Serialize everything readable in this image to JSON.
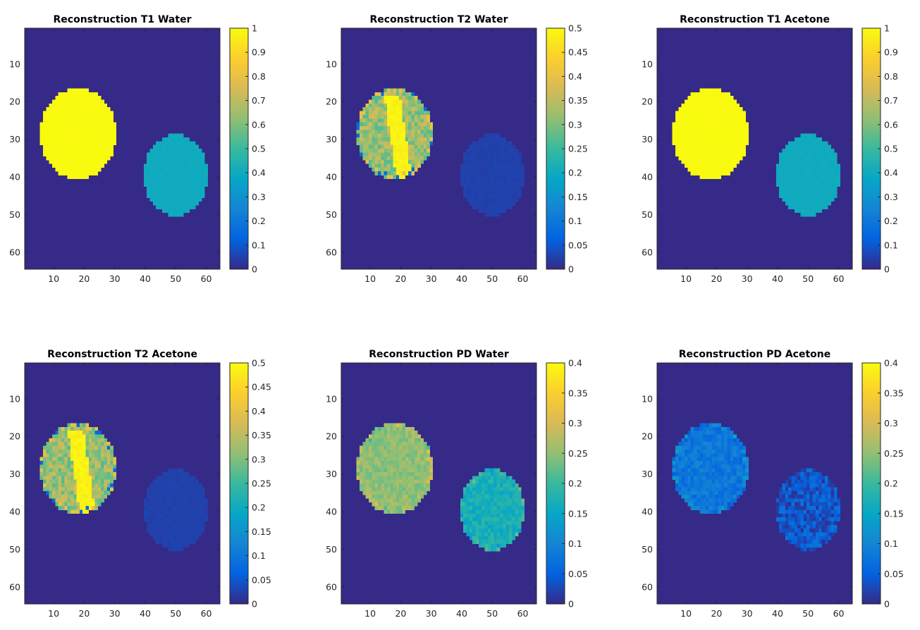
{
  "figure": {
    "colormap": "parula",
    "colormap_stops": [
      "#352a87",
      "#0363e1",
      "#1485d4",
      "#06a7c6",
      "#38b99e",
      "#92bf73",
      "#d9ba56",
      "#fcce2e",
      "#f9fb0e"
    ]
  },
  "chart_data": [
    {
      "type": "heatmap",
      "title": "Reconstruction T1 Water",
      "image_size": [
        64,
        64
      ],
      "xticks": [
        10,
        20,
        30,
        40,
        50,
        60
      ],
      "yticks": [
        10,
        20,
        30,
        40,
        50,
        60
      ],
      "clim": [
        0,
        1
      ],
      "colorbar_ticks": [
        "0",
        "0.1",
        "0.2",
        "0.3",
        "0.4",
        "0.5",
        "0.6",
        "0.7",
        "0.8",
        "0.9",
        "1"
      ],
      "background_value": 0,
      "regions": [
        {
          "shape": "disk",
          "center_x": 18,
          "center_y": 28.5,
          "radius_x": 12.5,
          "radius_y": 12,
          "value": 1.0,
          "texture": "uniform"
        },
        {
          "shape": "disk",
          "center_x": 50,
          "center_y": 39.5,
          "radius_x": 10.5,
          "radius_y": 10.8,
          "value": 0.4,
          "texture": "uniform"
        }
      ]
    },
    {
      "type": "heatmap",
      "title": "Reconstruction T2 Water",
      "image_size": [
        64,
        64
      ],
      "xticks": [
        10,
        20,
        30,
        40,
        50,
        60
      ],
      "yticks": [
        10,
        20,
        30,
        40,
        50,
        60
      ],
      "clim": [
        0,
        0.5
      ],
      "colorbar_ticks": [
        "0",
        "0.05",
        "0.1",
        "0.15",
        "0.2",
        "0.25",
        "0.3",
        "0.35",
        "0.4",
        "0.45",
        "0.5"
      ],
      "background_value": 0,
      "regions": [
        {
          "shape": "disk",
          "center_x": 18,
          "center_y": 28.5,
          "radius_x": 12.5,
          "radius_y": 12,
          "value": 0.32,
          "texture": "mixed_band"
        },
        {
          "shape": "disk",
          "center_x": 50,
          "center_y": 39.5,
          "radius_x": 10.5,
          "radius_y": 10.8,
          "value": 0.025,
          "texture": "uniform"
        }
      ]
    },
    {
      "type": "heatmap",
      "title": "Reconstruction T1 Acetone",
      "image_size": [
        64,
        64
      ],
      "xticks": [
        10,
        20,
        30,
        40,
        50,
        60
      ],
      "yticks": [
        10,
        20,
        30,
        40,
        50,
        60
      ],
      "clim": [
        0,
        1
      ],
      "colorbar_ticks": [
        "0",
        "0.1",
        "0.2",
        "0.3",
        "0.4",
        "0.5",
        "0.6",
        "0.7",
        "0.8",
        "0.9",
        "1"
      ],
      "background_value": 0,
      "regions": [
        {
          "shape": "disk",
          "center_x": 18,
          "center_y": 28.5,
          "radius_x": 12.5,
          "radius_y": 12,
          "value": 1.0,
          "texture": "uniform"
        },
        {
          "shape": "disk",
          "center_x": 50,
          "center_y": 39.5,
          "radius_x": 10.5,
          "radius_y": 10.8,
          "value": 0.4,
          "texture": "uniform"
        }
      ]
    },
    {
      "type": "heatmap",
      "title": "Reconstruction T2 Acetone",
      "image_size": [
        64,
        64
      ],
      "xticks": [
        10,
        20,
        30,
        40,
        50,
        60
      ],
      "yticks": [
        10,
        20,
        30,
        40,
        50,
        60
      ],
      "clim": [
        0,
        0.5
      ],
      "colorbar_ticks": [
        "0",
        "0.05",
        "0.1",
        "0.15",
        "0.2",
        "0.25",
        "0.3",
        "0.35",
        "0.4",
        "0.45",
        "0.5"
      ],
      "background_value": 0,
      "regions": [
        {
          "shape": "disk",
          "center_x": 18,
          "center_y": 28.5,
          "radius_x": 12.5,
          "radius_y": 12,
          "value": 0.32,
          "texture": "mixed_band"
        },
        {
          "shape": "disk",
          "center_x": 50,
          "center_y": 39.5,
          "radius_x": 10.5,
          "radius_y": 10.8,
          "value": 0.025,
          "texture": "uniform"
        }
      ]
    },
    {
      "type": "heatmap",
      "title": "Reconstruction PD Water",
      "image_size": [
        64,
        64
      ],
      "xticks": [
        10,
        20,
        30,
        40,
        50,
        60
      ],
      "yticks": [
        10,
        20,
        30,
        40,
        50,
        60
      ],
      "clim": [
        0,
        0.4
      ],
      "colorbar_ticks": [
        "0",
        "0.05",
        "0.1",
        "0.15",
        "0.2",
        "0.25",
        "0.3",
        "0.35",
        "0.4"
      ],
      "background_value": 0,
      "regions": [
        {
          "shape": "disk",
          "center_x": 18,
          "center_y": 28.5,
          "radius_x": 12.5,
          "radius_y": 12,
          "value": 0.25,
          "texture": "noisy"
        },
        {
          "shape": "disk",
          "center_x": 50,
          "center_y": 39.5,
          "radius_x": 10.5,
          "radius_y": 10.8,
          "value": 0.17,
          "texture": "noisy"
        }
      ]
    },
    {
      "type": "heatmap",
      "title": "Reconstruction PD Acetone",
      "image_size": [
        64,
        64
      ],
      "xticks": [
        10,
        20,
        30,
        40,
        50,
        60
      ],
      "yticks": [
        10,
        20,
        30,
        40,
        50,
        60
      ],
      "clim": [
        0,
        0.4
      ],
      "colorbar_ticks": [
        "0",
        "0.05",
        "0.1",
        "0.15",
        "0.2",
        "0.25",
        "0.3",
        "0.35",
        "0.4"
      ],
      "background_value": 0,
      "regions": [
        {
          "shape": "disk",
          "center_x": 18,
          "center_y": 28.5,
          "radius_x": 12.5,
          "radius_y": 12,
          "value": 0.08,
          "texture": "noisy"
        },
        {
          "shape": "disk",
          "center_x": 50,
          "center_y": 39.5,
          "radius_x": 10.5,
          "radius_y": 10.8,
          "value": 0.04,
          "texture": "speckle"
        }
      ]
    }
  ]
}
